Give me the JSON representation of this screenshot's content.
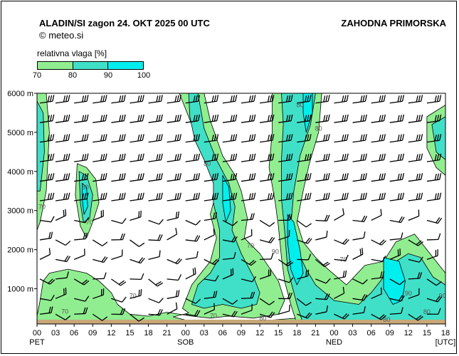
{
  "header": {
    "title": "ALADIN/SI  zagon 24. OKT 2025 00 UTC",
    "copyright": "©  meteo.si",
    "region": "ZAHODNA PRIMORSKA"
  },
  "legend": {
    "title": "relativna vlaga [%]",
    "ticks": [
      "70",
      "80",
      "90",
      "100"
    ],
    "colors": [
      "#90ee90",
      "#40e0c8",
      "#00eeee"
    ]
  },
  "colors": {
    "low": "#90ee90",
    "mid": "#40e0c8",
    "high": "#00eeee",
    "ground": "#c8a878"
  },
  "chart_data": {
    "type": "heatmap",
    "title": "relativna vlaga [%]",
    "x_unit": "[UTC]",
    "x_ticks": [
      "00",
      "03",
      "06",
      "09",
      "12",
      "15",
      "18",
      "21",
      "00",
      "03",
      "06",
      "09",
      "12",
      "15",
      "18",
      "21",
      "00",
      "03",
      "06",
      "09",
      "12",
      "15",
      "18"
    ],
    "x_hours": [
      0,
      3,
      6,
      9,
      12,
      15,
      18,
      21,
      24,
      27,
      30,
      33,
      36,
      39,
      42,
      45,
      48,
      51,
      54,
      57,
      60,
      63,
      66
    ],
    "day_labels": [
      {
        "label": "PET",
        "hour": 0
      },
      {
        "label": "SOB",
        "hour": 24
      },
      {
        "label": "NED",
        "hour": 48
      }
    ],
    "y_ticks": [
      "6000 m",
      "5000 m",
      "4000 m",
      "3000 m",
      "2000 m",
      "1000 m"
    ],
    "y_values": [
      6000,
      5000,
      4000,
      3000,
      2000,
      1000
    ],
    "xlim": [
      0,
      66
    ],
    "ylim": [
      100,
      6000
    ],
    "levels": [
      70,
      80,
      90,
      100
    ],
    "humidity_regions": [
      {
        "level": 70,
        "polygon": [
          [
            0,
            6000
          ],
          [
            1.5,
            6000
          ],
          [
            2,
            5000
          ],
          [
            1.5,
            3500
          ],
          [
            0.5,
            2700
          ],
          [
            0,
            2500
          ]
        ]
      },
      {
        "level": 80,
        "polygon": [
          [
            0,
            5800
          ],
          [
            1,
            5500
          ],
          [
            1.2,
            4500
          ],
          [
            0.5,
            3500
          ],
          [
            0,
            3500
          ]
        ]
      },
      {
        "level": 70,
        "polygon": [
          [
            6.5,
            4200
          ],
          [
            8,
            4100
          ],
          [
            9.5,
            3800
          ],
          [
            10,
            3200
          ],
          [
            9,
            2700
          ],
          [
            8,
            2300
          ],
          [
            7,
            2600
          ],
          [
            6.2,
            3400
          ]
        ]
      },
      {
        "level": 80,
        "polygon": [
          [
            6.8,
            4000
          ],
          [
            8,
            3900
          ],
          [
            9,
            3400
          ],
          [
            8.5,
            2800
          ],
          [
            7.5,
            2700
          ],
          [
            7,
            3200
          ]
        ]
      },
      {
        "level": 90,
        "polygon": [
          [
            7.3,
            3700
          ],
          [
            8,
            3600
          ],
          [
            8.2,
            3100
          ],
          [
            7.6,
            2900
          ],
          [
            7.3,
            3300
          ]
        ]
      },
      {
        "level": 70,
        "polygon": [
          [
            23,
            6000
          ],
          [
            27,
            6000
          ],
          [
            28,
            5300
          ],
          [
            30,
            4400
          ],
          [
            32,
            3900
          ],
          [
            33,
            3500
          ],
          [
            34,
            2800
          ],
          [
            33.5,
            2300
          ],
          [
            36,
            1900
          ],
          [
            39,
            1200
          ],
          [
            40,
            700
          ],
          [
            39,
            350
          ],
          [
            35,
            250
          ],
          [
            31,
            300
          ],
          [
            28,
            250
          ],
          [
            25,
            300
          ],
          [
            21,
            400
          ],
          [
            18,
            300
          ],
          [
            15,
            350
          ],
          [
            13,
            600
          ],
          [
            12,
            900
          ],
          [
            10,
            1200
          ],
          [
            8,
            1400
          ],
          [
            5,
            1500
          ],
          [
            2,
            1400
          ],
          [
            1,
            1200
          ],
          [
            0.5,
            700
          ],
          [
            0,
            300
          ],
          [
            0,
            100
          ],
          [
            24,
            100
          ],
          [
            42,
            100
          ],
          [
            42,
            250
          ],
          [
            38,
            200
          ],
          [
            34,
            150
          ],
          [
            30,
            150
          ],
          [
            26,
            150
          ],
          [
            24,
            200
          ],
          [
            22,
            280
          ],
          [
            24.5,
            380
          ],
          [
            23.5,
            500
          ],
          [
            25,
            1100
          ],
          [
            28,
            1700
          ],
          [
            29,
            2300
          ],
          [
            28,
            2900
          ],
          [
            29,
            3500
          ],
          [
            28,
            4200
          ],
          [
            26.5,
            4600
          ],
          [
            25,
            5200
          ],
          [
            24,
            5600
          ]
        ]
      },
      {
        "level": 80,
        "polygon": [
          [
            24.5,
            6000
          ],
          [
            26,
            6000
          ],
          [
            27,
            5100
          ],
          [
            29,
            4300
          ],
          [
            31,
            3700
          ],
          [
            32,
            3100
          ],
          [
            31.5,
            2500
          ],
          [
            33,
            1900
          ],
          [
            35,
            1300
          ],
          [
            36,
            900
          ],
          [
            35.5,
            600
          ],
          [
            33,
            500
          ],
          [
            30,
            600
          ],
          [
            27,
            500
          ],
          [
            25,
            600
          ],
          [
            26,
            1100
          ],
          [
            28,
            1400
          ],
          [
            29.5,
            1800
          ],
          [
            29.5,
            2500
          ],
          [
            28.5,
            3200
          ],
          [
            28.5,
            3700
          ],
          [
            27,
            4300
          ],
          [
            25.5,
            4800
          ],
          [
            24.7,
            5400
          ]
        ]
      },
      {
        "level": 90,
        "polygon": [
          [
            30,
            3900
          ],
          [
            31,
            3600
          ],
          [
            31.3,
            3000
          ],
          [
            30.5,
            2700
          ],
          [
            30,
            3200
          ]
        ]
      },
      {
        "level": 70,
        "polygon": [
          [
            38,
            6000
          ],
          [
            46,
            6000
          ],
          [
            45.5,
            5000
          ],
          [
            44,
            4200
          ],
          [
            43,
            3500
          ],
          [
            42,
            2700
          ],
          [
            43,
            2200
          ],
          [
            45,
            1800
          ],
          [
            47,
            1500
          ],
          [
            50,
            1100
          ],
          [
            53,
            1600
          ],
          [
            56,
            1700
          ],
          [
            58,
            2200
          ],
          [
            61,
            2400
          ],
          [
            63,
            2000
          ],
          [
            65,
            1600
          ],
          [
            66,
            1400
          ],
          [
            66,
            100
          ],
          [
            42,
            100
          ],
          [
            41,
            600
          ],
          [
            40,
            1200
          ],
          [
            39.5,
            1800
          ],
          [
            39,
            2600
          ],
          [
            38.5,
            3200
          ],
          [
            37.5,
            4100
          ],
          [
            38,
            5000
          ]
        ]
      },
      {
        "level": 80,
        "polygon": [
          [
            39.5,
            6000
          ],
          [
            45,
            6000
          ],
          [
            44.2,
            5200
          ],
          [
            42.5,
            4400
          ],
          [
            41.5,
            3500
          ],
          [
            41,
            2600
          ],
          [
            42,
            2000
          ],
          [
            43.5,
            1500
          ],
          [
            45,
            1100
          ],
          [
            48,
            700
          ],
          [
            52,
            600
          ],
          [
            54,
            900
          ],
          [
            56,
            1300
          ],
          [
            58,
            1700
          ],
          [
            60,
            1900
          ],
          [
            62,
            1800
          ],
          [
            64,
            1300
          ],
          [
            66,
            1100
          ],
          [
            66,
            100
          ],
          [
            43,
            100
          ],
          [
            42,
            600
          ],
          [
            40.5,
            1500
          ],
          [
            40,
            2500
          ],
          [
            39.5,
            3300
          ],
          [
            39.5,
            4300
          ],
          [
            39.8,
            5200
          ]
        ]
      },
      {
        "level": 90,
        "polygon": [
          [
            43,
            6000
          ],
          [
            44.5,
            6000
          ],
          [
            44.5,
            5500
          ],
          [
            43.5,
            5000
          ],
          [
            43,
            5500
          ]
        ]
      },
      {
        "level": 90,
        "polygon": [
          [
            40.5,
            2900
          ],
          [
            41.5,
            2700
          ],
          [
            42.5,
            2000
          ],
          [
            43,
            1400
          ],
          [
            42,
            1100
          ],
          [
            41,
            1500
          ],
          [
            40.5,
            2200
          ]
        ]
      },
      {
        "level": 90,
        "polygon": [
          [
            56,
            1800
          ],
          [
            58.5,
            1700
          ],
          [
            59.5,
            1200
          ],
          [
            59,
            700
          ],
          [
            57.5,
            600
          ],
          [
            56,
            1000
          ]
        ]
      },
      {
        "level": 70,
        "polygon": [
          [
            63,
            5400
          ],
          [
            66,
            5700
          ],
          [
            66,
            3900
          ],
          [
            64.5,
            4100
          ],
          [
            63,
            4600
          ]
        ]
      },
      {
        "level": 80,
        "polygon": [
          [
            63.8,
            5200
          ],
          [
            66,
            5400
          ],
          [
            66,
            4300
          ],
          [
            64.5,
            4500
          ]
        ]
      }
    ],
    "contour_labels": [
      {
        "text": "70",
        "x": 0.8,
        "y": 3100
      },
      {
        "text": "80",
        "x": 7.8,
        "y": 3600
      },
      {
        "text": "70",
        "x": 8.5,
        "y": 2700
      },
      {
        "text": "80",
        "x": 27.5,
        "y": 4200
      },
      {
        "text": "70",
        "x": 34.5,
        "y": 2100
      },
      {
        "text": "90",
        "x": 38.5,
        "y": 1950
      },
      {
        "text": "80",
        "x": 42.5,
        "y": 5700
      },
      {
        "text": "80",
        "x": 45.5,
        "y": 5100
      },
      {
        "text": "70",
        "x": 49.5,
        "y": 1750
      },
      {
        "text": "70",
        "x": 15.5,
        "y": 820
      },
      {
        "text": "70",
        "x": 4.5,
        "y": 420
      },
      {
        "text": "70",
        "x": 28.5,
        "y": 310
      },
      {
        "text": "80",
        "x": 36.5,
        "y": 250
      },
      {
        "text": "80",
        "x": 56.5,
        "y": 210
      },
      {
        "text": "80",
        "x": 63,
        "y": 410
      },
      {
        "text": "90",
        "x": 60,
        "y": 880
      },
      {
        "text": "90",
        "x": 65.5,
        "y": 820
      }
    ],
    "ground_level": 100,
    "wind_barbs": {
      "hours": [
        0,
        3,
        6,
        9,
        12,
        15,
        18,
        21,
        24,
        27,
        30,
        33,
        36,
        39,
        42,
        45,
        48,
        51,
        54,
        57,
        60,
        63,
        66
      ],
      "levels": [
        5750,
        5250,
        4750,
        4250,
        3750,
        3250,
        2750,
        2250,
        1750,
        1250,
        750,
        350
      ],
      "upper_barb_count": 3
    }
  }
}
